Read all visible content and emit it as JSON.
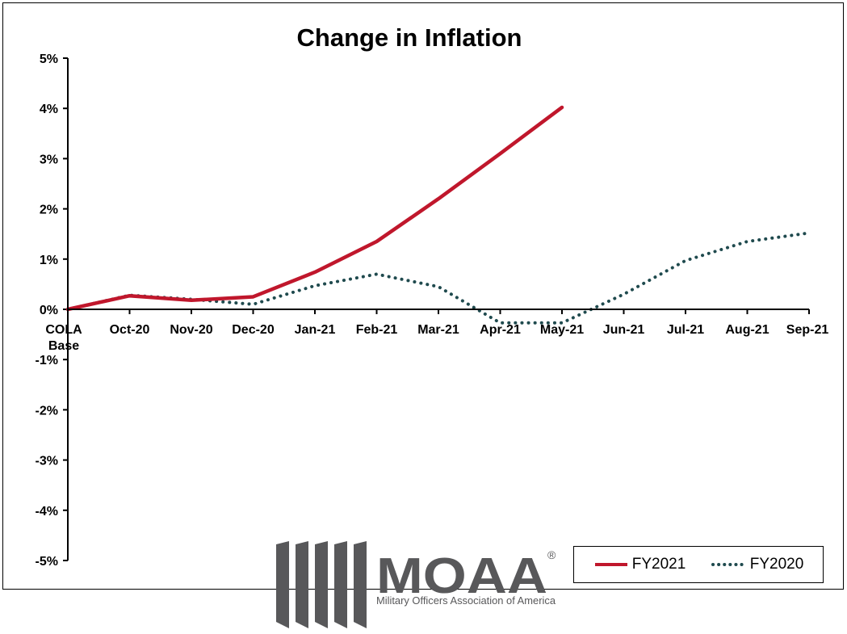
{
  "chart_data": {
    "type": "line",
    "title": "Change in Inflation",
    "categories": [
      "COLA\nBase",
      "Oct-20",
      "Nov-20",
      "Dec-20",
      "Jan-21",
      "Feb-21",
      "Mar-21",
      "Apr-21",
      "May-21",
      "Jun-21",
      "Jul-21",
      "Aug-21",
      "Sep-21"
    ],
    "ylim": [
      -5,
      5
    ],
    "yticks": [
      5,
      4,
      3,
      2,
      1,
      0,
      -1,
      -2,
      -3,
      -4,
      -5
    ],
    "ytick_labels": [
      "5%",
      "4%",
      "3%",
      "2%",
      "1%",
      "0%",
      "-1%",
      "-2%",
      "-3%",
      "-4%",
      "-5%"
    ],
    "series": [
      {
        "name": "FY2021",
        "color": "#c0172c",
        "style": "solid",
        "values": [
          0.0,
          0.27,
          0.18,
          0.25,
          0.74,
          1.35,
          2.2,
          3.1,
          4.02,
          null,
          null,
          null,
          null
        ]
      },
      {
        "name": "FY2020",
        "color": "#1f4a4e",
        "style": "dotted",
        "values": [
          0.0,
          0.28,
          0.2,
          0.1,
          0.47,
          0.7,
          0.45,
          -0.27,
          -0.27,
          0.3,
          0.97,
          1.35,
          1.52
        ]
      }
    ],
    "legend_position": "bottom-right",
    "grid": false
  },
  "logo": {
    "name": "MOAA",
    "registered": "®",
    "subtitle": "Military Officers Association of America"
  }
}
